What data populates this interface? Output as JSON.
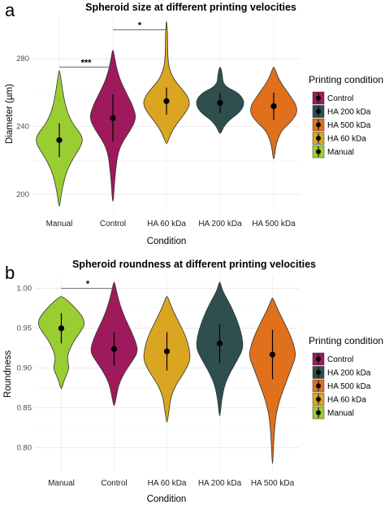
{
  "chart_data": [
    {
      "type": "violin",
      "panel_letter": "a",
      "title": "Spheroid size at different printing velocities",
      "xlabel": "Condition",
      "ylabel": "Diameter (µm)",
      "ylim": [
        190,
        305
      ],
      "yticks": [
        200,
        240,
        280
      ],
      "grid": true,
      "legend_position": "right",
      "categories": [
        "Manual",
        "Control",
        "HA 60 kDa",
        "HA 200 kDa",
        "HA 500 kDa"
      ],
      "series": [
        {
          "name": "Manual",
          "color": "#9ACD32",
          "mean": 232,
          "sd_low": 222,
          "sd_high": 242,
          "min": 193,
          "max": 273,
          "profile": [
            [
              193,
              0.02
            ],
            [
              200,
              0.08
            ],
            [
              208,
              0.2
            ],
            [
              215,
              0.35
            ],
            [
              222,
              0.62
            ],
            [
              228,
              0.9
            ],
            [
              232,
              1.0
            ],
            [
              236,
              0.9
            ],
            [
              242,
              0.55
            ],
            [
              250,
              0.3
            ],
            [
              258,
              0.18
            ],
            [
              265,
              0.1
            ],
            [
              273,
              0.02
            ]
          ]
        },
        {
          "name": "Control",
          "color": "#9E1A5C",
          "mean": 245,
          "sd_low": 231,
          "sd_high": 259,
          "min": 196,
          "max": 285,
          "profile": [
            [
              196,
              0.02
            ],
            [
              205,
              0.06
            ],
            [
              215,
              0.12
            ],
            [
              225,
              0.22
            ],
            [
              232,
              0.45
            ],
            [
              238,
              0.75
            ],
            [
              245,
              1.0
            ],
            [
              252,
              0.85
            ],
            [
              259,
              0.6
            ],
            [
              266,
              0.35
            ],
            [
              273,
              0.18
            ],
            [
              280,
              0.08
            ],
            [
              285,
              0.02
            ]
          ]
        },
        {
          "name": "HA 60 kDa",
          "color": "#DAA520",
          "mean": 255,
          "sd_low": 247,
          "sd_high": 263,
          "min": 230,
          "max": 302,
          "profile": [
            [
              230,
              0.03
            ],
            [
              236,
              0.18
            ],
            [
              242,
              0.45
            ],
            [
              248,
              0.8
            ],
            [
              253,
              1.0
            ],
            [
              258,
              0.9
            ],
            [
              263,
              0.6
            ],
            [
              268,
              0.3
            ],
            [
              274,
              0.12
            ],
            [
              280,
              0.06
            ],
            [
              288,
              0.05
            ],
            [
              295,
              0.04
            ],
            [
              302,
              0.01
            ]
          ]
        },
        {
          "name": "HA 200 kDa",
          "color": "#2F4F4F",
          "mean": 254,
          "sd_low": 248,
          "sd_high": 260,
          "min": 236,
          "max": 275,
          "profile": [
            [
              236,
              0.03
            ],
            [
              240,
              0.15
            ],
            [
              244,
              0.4
            ],
            [
              248,
              0.8
            ],
            [
              252,
              1.0
            ],
            [
              256,
              1.0
            ],
            [
              260,
              0.75
            ],
            [
              263,
              0.3
            ],
            [
              266,
              0.12
            ],
            [
              270,
              0.1
            ],
            [
              275,
              0.03
            ]
          ]
        },
        {
          "name": "HA 500 kDa",
          "color": "#E0701C",
          "mean": 252,
          "sd_low": 244,
          "sd_high": 260,
          "min": 221,
          "max": 275,
          "profile": [
            [
              221,
              0.02
            ],
            [
              226,
              0.06
            ],
            [
              232,
              0.15
            ],
            [
              238,
              0.35
            ],
            [
              243,
              0.75
            ],
            [
              248,
              1.0
            ],
            [
              253,
              0.95
            ],
            [
              258,
              0.7
            ],
            [
              262,
              0.5
            ],
            [
              266,
              0.3
            ],
            [
              270,
              0.15
            ],
            [
              275,
              0.03
            ]
          ]
        }
      ],
      "annotations": [
        {
          "from": "Manual",
          "to": "Control",
          "y": 275,
          "label": "***"
        },
        {
          "from": "Control",
          "to": "HA 60 kDa",
          "y": 297,
          "label": "*"
        }
      ]
    },
    {
      "type": "violin",
      "panel_letter": "b",
      "title": "Spheroid roundness at different printing velocities",
      "xlabel": "Condition",
      "ylabel": "Roundness",
      "ylim": [
        0.77,
        1.015
      ],
      "yticks": [
        0.8,
        0.85,
        0.9,
        0.95,
        1.0
      ],
      "ytick_labels": [
        "0.80",
        "0.85",
        "0.90",
        "0.95",
        "1.00"
      ],
      "grid": true,
      "legend_position": "right",
      "categories": [
        "Manual",
        "Control",
        "HA 60 kDa",
        "HA 200 kDa",
        "HA 500 kDa"
      ],
      "series": [
        {
          "name": "Manual",
          "color": "#9ACD32",
          "mean": 0.95,
          "sd_low": 0.931,
          "sd_high": 0.969,
          "min": 0.874,
          "max": 0.99,
          "profile": [
            [
              0.874,
              0.02
            ],
            [
              0.885,
              0.12
            ],
            [
              0.9,
              0.35
            ],
            [
              0.91,
              0.25
            ],
            [
              0.92,
              0.3
            ],
            [
              0.935,
              0.55
            ],
            [
              0.945,
              0.8
            ],
            [
              0.955,
              1.0
            ],
            [
              0.965,
              0.9
            ],
            [
              0.975,
              0.6
            ],
            [
              0.983,
              0.35
            ],
            [
              0.99,
              0.03
            ]
          ]
        },
        {
          "name": "Control",
          "color": "#9E1A5C",
          "mean": 0.924,
          "sd_low": 0.903,
          "sd_high": 0.945,
          "min": 0.853,
          "max": 1.008,
          "profile": [
            [
              0.853,
              0.02
            ],
            [
              0.865,
              0.1
            ],
            [
              0.88,
              0.2
            ],
            [
              0.895,
              0.45
            ],
            [
              0.91,
              0.8
            ],
            [
              0.92,
              1.0
            ],
            [
              0.93,
              0.95
            ],
            [
              0.945,
              0.75
            ],
            [
              0.96,
              0.5
            ],
            [
              0.975,
              0.3
            ],
            [
              0.99,
              0.15
            ],
            [
              1.008,
              0.02
            ]
          ]
        },
        {
          "name": "HA 60 kDa",
          "color": "#DAA520",
          "mean": 0.921,
          "sd_low": 0.897,
          "sd_high": 0.945,
          "min": 0.832,
          "max": 0.99,
          "profile": [
            [
              0.832,
              0.02
            ],
            [
              0.85,
              0.1
            ],
            [
              0.865,
              0.18
            ],
            [
              0.88,
              0.4
            ],
            [
              0.895,
              0.75
            ],
            [
              0.91,
              1.0
            ],
            [
              0.925,
              0.95
            ],
            [
              0.94,
              0.8
            ],
            [
              0.955,
              0.55
            ],
            [
              0.97,
              0.3
            ],
            [
              0.98,
              0.15
            ],
            [
              0.99,
              0.03
            ]
          ]
        },
        {
          "name": "HA 200 kDa",
          "color": "#2F4F4F",
          "mean": 0.931,
          "sd_low": 0.906,
          "sd_high": 0.955,
          "min": 0.84,
          "max": 1.008,
          "profile": [
            [
              0.84,
              0.02
            ],
            [
              0.86,
              0.08
            ],
            [
              0.88,
              0.22
            ],
            [
              0.895,
              0.45
            ],
            [
              0.91,
              0.75
            ],
            [
              0.925,
              1.0
            ],
            [
              0.94,
              0.95
            ],
            [
              0.955,
              0.8
            ],
            [
              0.97,
              0.6
            ],
            [
              0.985,
              0.35
            ],
            [
              0.997,
              0.12
            ],
            [
              1.008,
              0.02
            ]
          ]
        },
        {
          "name": "HA 500 kDa",
          "color": "#E0701C",
          "mean": 0.917,
          "sd_low": 0.886,
          "sd_high": 0.948,
          "min": 0.78,
          "max": 0.988,
          "profile": [
            [
              0.78,
              0.01
            ],
            [
              0.8,
              0.04
            ],
            [
              0.82,
              0.08
            ],
            [
              0.84,
              0.14
            ],
            [
              0.86,
              0.3
            ],
            [
              0.88,
              0.55
            ],
            [
              0.9,
              0.8
            ],
            [
              0.915,
              1.0
            ],
            [
              0.93,
              0.9
            ],
            [
              0.945,
              0.7
            ],
            [
              0.96,
              0.45
            ],
            [
              0.975,
              0.2
            ],
            [
              0.988,
              0.02
            ]
          ]
        }
      ],
      "annotations": [
        {
          "from": "Manual",
          "to": "Control",
          "y": 1.0,
          "label": "*"
        }
      ]
    }
  ],
  "legend": {
    "title": "Printing condition",
    "items": [
      {
        "label": "Control",
        "color": "#9E1A5C"
      },
      {
        "label": "HA 200 kDa",
        "color": "#2F4F4F"
      },
      {
        "label": "HA 500 kDa",
        "color": "#E0701C"
      },
      {
        "label": "HA 60 kDa",
        "color": "#DAA520"
      },
      {
        "label": "Manual",
        "color": "#9ACD32"
      }
    ]
  }
}
